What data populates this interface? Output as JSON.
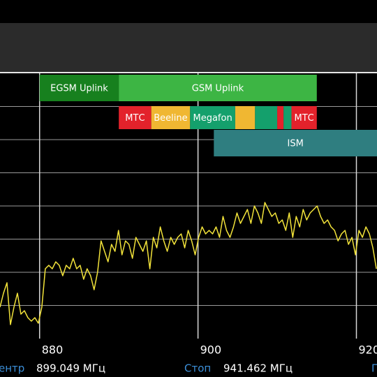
{
  "chart_data": {
    "type": "line",
    "x": [
      875,
      875.44,
      875.88,
      876.32,
      876.76,
      877.2,
      877.64,
      878.08,
      878.52,
      878.96,
      879.4,
      879.84,
      880.28,
      880.72,
      881.16,
      881.6,
      882.04,
      882.48,
      882.92,
      883.36,
      883.8,
      884.24,
      884.68,
      885.12,
      885.56,
      886,
      886.44,
      886.88,
      887.32,
      887.76,
      888.2,
      888.64,
      889.08,
      889.52,
      889.96,
      890.4,
      890.84,
      891.28,
      891.72,
      892.16,
      892.6,
      893.04,
      893.48,
      893.92,
      894.36,
      894.8,
      895.24,
      895.68,
      896.12,
      896.56,
      897,
      897.44,
      897.88,
      898.32,
      898.76,
      899.2,
      899.64,
      900.08,
      900.52,
      900.96,
      901.4,
      901.84,
      902.28,
      902.72,
      903.16,
      903.6,
      904.04,
      904.48,
      904.92,
      905.36,
      905.8,
      906.24,
      906.68,
      907.12,
      907.56,
      908,
      908.44,
      908.88,
      909.32,
      909.76,
      910.2,
      910.64,
      911.08,
      911.52,
      911.96,
      912.4,
      912.84,
      913.28,
      913.72,
      914.16,
      914.6,
      915.04,
      915.48,
      915.92,
      916.36,
      916.8,
      917.24,
      917.68,
      918.12,
      918.56,
      919,
      919.44,
      919.88,
      920.32,
      920.76,
      921.2,
      921.64,
      922.08,
      922.52
    ],
    "values": [
      45,
      65,
      80,
      20,
      45,
      65,
      35,
      40,
      30,
      25,
      30,
      22,
      45,
      100,
      105,
      100,
      110,
      105,
      90,
      105,
      100,
      115,
      100,
      105,
      85,
      100,
      90,
      70,
      95,
      140,
      125,
      110,
      135,
      125,
      155,
      120,
      140,
      135,
      115,
      145,
      135,
      125,
      140,
      100,
      145,
      130,
      160,
      140,
      125,
      145,
      135,
      145,
      150,
      130,
      155,
      140,
      120,
      145,
      160,
      150,
      155,
      150,
      160,
      145,
      175,
      155,
      145,
      160,
      180,
      165,
      175,
      185,
      165,
      190,
      180,
      165,
      195,
      185,
      175,
      180,
      165,
      170,
      155,
      180,
      145,
      175,
      160,
      185,
      170,
      180,
      185,
      190,
      175,
      165,
      170,
      160,
      155,
      140,
      150,
      155,
      135,
      145,
      120,
      155,
      145,
      160,
      150,
      130,
      100
    ],
    "color": "#f2e33a",
    "xlim": [
      875,
      922.6
    ],
    "xticks": [
      880,
      900,
      920
    ],
    "ylim": [
      0,
      380
    ],
    "yticks": [
      47.5,
      95,
      142.5,
      190,
      237.5,
      285,
      332.5
    ],
    "grid": true,
    "band_rows": [
      [
        {
          "label": "EGSM Uplink",
          "start": 880,
          "end": 890,
          "color": "#17801e"
        },
        {
          "label": "GSM Uplink",
          "start": 890,
          "end": 915,
          "color": "#3db544"
        }
      ],
      [
        {
          "label": "МТС",
          "start": 890,
          "end": 894.1,
          "color": "#e3222b"
        },
        {
          "label": "Beeline",
          "start": 894.1,
          "end": 899,
          "color": "#f0b732"
        },
        {
          "label": "Megafon",
          "start": 899,
          "end": 904.7,
          "color": "#14a06c"
        },
        {
          "start": 904.7,
          "end": 907.2,
          "color": "#f0b732"
        },
        {
          "start": 907.2,
          "end": 910,
          "color": "#14a06c"
        },
        {
          "start": 910,
          "end": 910.8,
          "color": "#e3222b"
        },
        {
          "start": 910.8,
          "end": 911.8,
          "color": "#14a06c"
        },
        {
          "label": "МТС",
          "start": 911.8,
          "end": 915,
          "color": "#e3222b"
        }
      ],
      [
        {
          "label": "ISM",
          "start": 902,
          "end": 928,
          "color": "#2f7e80"
        }
      ]
    ],
    "footer": [
      {
        "label": "ентр",
        "value": "899.049 МГц"
      },
      {
        "label": "Стоп",
        "value": "941.462 МГц"
      },
      {
        "label": "Г"
      }
    ]
  }
}
